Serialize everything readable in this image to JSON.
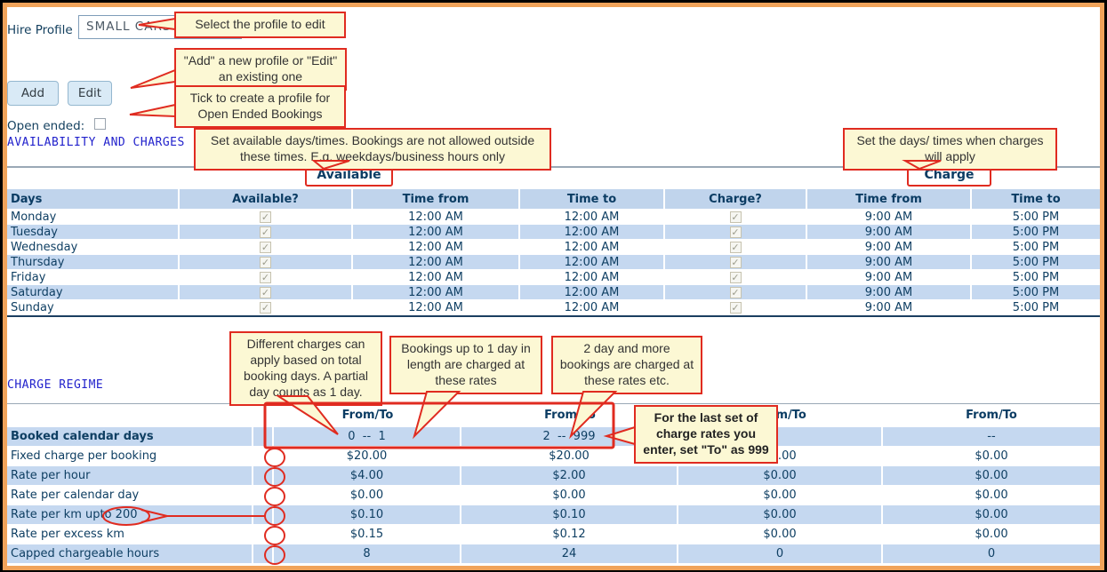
{
  "window": {
    "border_color": "#f0a35a",
    "background": "#ffffff"
  },
  "profile_section": {
    "label": "Hire Profile",
    "value": "SMALL CARS",
    "add_button": "Add",
    "edit_button": "Edit",
    "open_ended_label": "Open ended:",
    "open_ended_checked": false
  },
  "headings": {
    "availability": "AVAILABILITY AND CHARGES",
    "charge_regime": "CHARGE REGIME"
  },
  "annotations": {
    "select_profile": "Select the profile to edit",
    "add_edit": "\"Add\" a new profile or \"Edit\" an existing one",
    "tick_open_ended": "Tick to create a profile for Open Ended Bookings",
    "set_available": "Set available days/times. Bookings are not allowed outside these times. E.g. weekdays/business hours only",
    "set_charge": "Set the days/ times when charges will apply",
    "different_charges": "Different charges can apply based on total booking days. A partial day counts as 1 day.",
    "one_day_rates": "Bookings up to 1 day in length are charged at these rates",
    "two_day_rates": "2 day and more bookings are charged at these rates etc.",
    "last_set": "For the last set of charge rates you enter, set \"To\" as 999",
    "available_tag": "Available",
    "charge_tag": "Charge",
    "circled_label_text": "200",
    "annotation_red": "#e02b20"
  },
  "availability_table": {
    "headers": [
      "Days",
      "Available?",
      "Time from",
      "Time to",
      "Charge?",
      "Time from",
      "Time to"
    ],
    "rows": [
      {
        "day": "Monday",
        "available": true,
        "time_from": "12:00 AM",
        "time_to": "12:00 AM",
        "charge": true,
        "charge_from": "9:00 AM",
        "charge_to": "5:00 PM"
      },
      {
        "day": "Tuesday",
        "available": true,
        "time_from": "12:00 AM",
        "time_to": "12:00 AM",
        "charge": true,
        "charge_from": "9:00 AM",
        "charge_to": "5:00 PM"
      },
      {
        "day": "Wednesday",
        "available": true,
        "time_from": "12:00 AM",
        "time_to": "12:00 AM",
        "charge": true,
        "charge_from": "9:00 AM",
        "charge_to": "5:00 PM"
      },
      {
        "day": "Thursday",
        "available": true,
        "time_from": "12:00 AM",
        "time_to": "12:00 AM",
        "charge": true,
        "charge_from": "9:00 AM",
        "charge_to": "5:00 PM"
      },
      {
        "day": "Friday",
        "available": true,
        "time_from": "12:00 AM",
        "time_to": "12:00 AM",
        "charge": true,
        "charge_from": "9:00 AM",
        "charge_to": "5:00 PM"
      },
      {
        "day": "Saturday",
        "available": true,
        "time_from": "12:00 AM",
        "time_to": "12:00 AM",
        "charge": true,
        "charge_from": "9:00 AM",
        "charge_to": "5:00 PM"
      },
      {
        "day": "Sunday",
        "available": true,
        "time_from": "12:00 AM",
        "time_to": "12:00 AM",
        "charge": true,
        "charge_from": "9:00 AM",
        "charge_to": "5:00 PM"
      }
    ]
  },
  "charge_table": {
    "headers": [
      "From/To",
      "From/To",
      "From/To",
      "From/To"
    ],
    "rows": [
      {
        "label": "Booked calendar days",
        "bold": true,
        "values": [
          "0  --  1",
          "2  --  999",
          "",
          "--"
        ]
      },
      {
        "label": "Fixed charge per booking",
        "bold": false,
        "values": [
          "$20.00",
          "$20.00",
          "$0.00",
          "$0.00"
        ]
      },
      {
        "label": "Rate per hour",
        "bold": false,
        "values": [
          "$4.00",
          "$2.00",
          "$0.00",
          "$0.00"
        ]
      },
      {
        "label": "Rate per calendar day",
        "bold": false,
        "values": [
          "$0.00",
          "$0.00",
          "$0.00",
          "$0.00"
        ]
      },
      {
        "label": "Rate per km upto 200",
        "bold": false,
        "values": [
          "$0.10",
          "$0.10",
          "$0.00",
          "$0.00"
        ]
      },
      {
        "label": "Rate per excess km",
        "bold": false,
        "values": [
          "$0.15",
          "$0.12",
          "$0.00",
          "$0.00"
        ]
      },
      {
        "label": "Capped chargeable hours",
        "bold": false,
        "values": [
          "8",
          "24",
          "0",
          "0"
        ]
      }
    ]
  }
}
